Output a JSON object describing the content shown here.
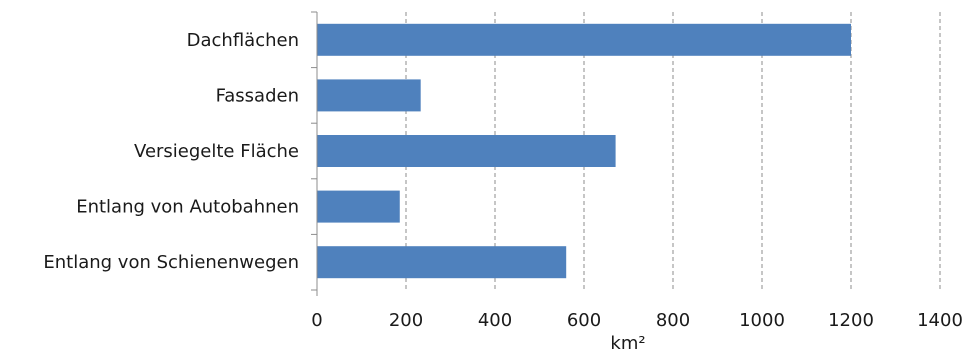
{
  "chart_data": {
    "type": "bar",
    "orientation": "horizontal",
    "categories": [
      "Dachflächen",
      "Fassaden",
      "Versiegelte Fläche",
      "Entlang von Autobahnen",
      "Entlang von Schienenwegen"
    ],
    "values": [
      1200,
      233,
      671,
      186,
      560
    ],
    "xlabel": "km²",
    "xlim": [
      0,
      1400
    ],
    "xticks": [
      0,
      200,
      400,
      600,
      800,
      1000,
      1200,
      1400
    ],
    "xtick_labels": [
      "0",
      "200",
      "400",
      "600",
      "800",
      "1000",
      "1200",
      "1400"
    ],
    "grid": "vertical-dashed",
    "bar_color": "#4f81bd"
  }
}
